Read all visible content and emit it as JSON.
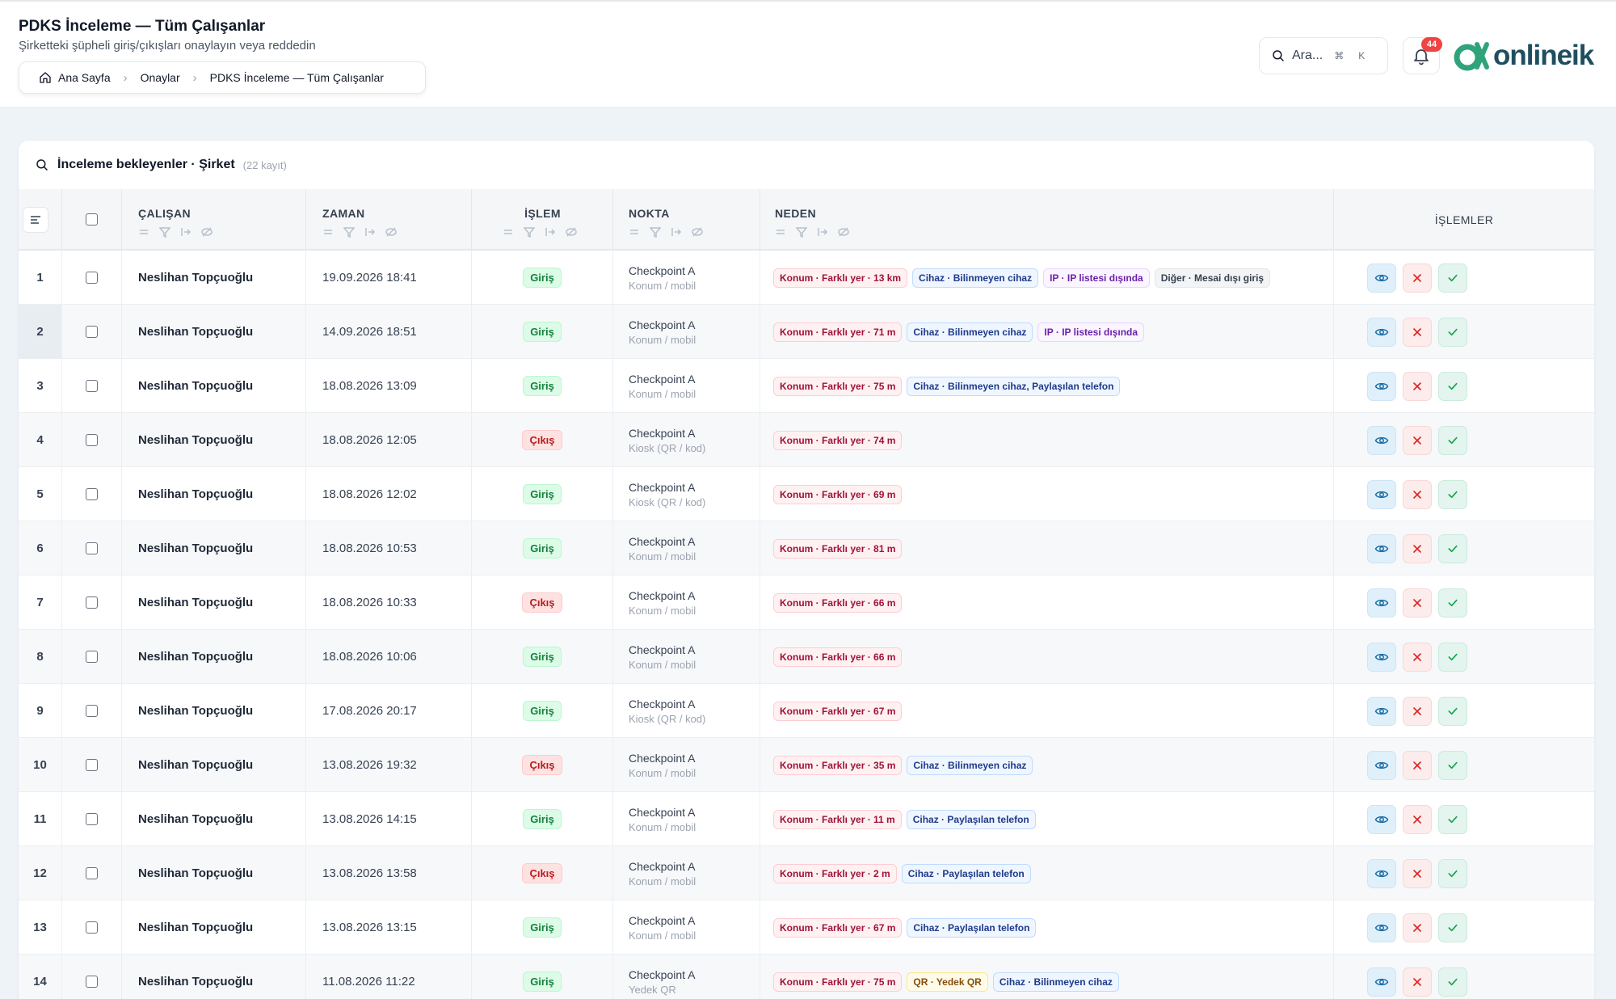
{
  "header": {
    "title": "PDKS İnceleme — Tüm Çalışanlar",
    "subtitle": "Şirketteki şüpheli giriş/çıkışları onaylayın veya reddedin",
    "breadcrumb": [
      "Ana Sayfa",
      "Onaylar",
      "PDKS İnceleme — Tüm Çalışanlar"
    ],
    "search_placeholder": "Ara...",
    "shortcut_mod": "⌘",
    "shortcut_key": "K",
    "notification_count": "44",
    "logo_text": "onlineik"
  },
  "card": {
    "title": "İnceleme bekleyenler · Şirket",
    "count": "(22 kayıt)"
  },
  "columns": {
    "employee": "ÇALIŞAN",
    "time": "ZAMAN",
    "action": "İŞLEM",
    "point": "NOKTA",
    "reason": "NEDEN",
    "operations": "İŞLEMLER"
  },
  "colors": {
    "giris": "#15803d",
    "cikis": "#b91c1c",
    "konum": "#9f1239",
    "cihaz": "#1e3a8a",
    "ip": "#6b21a8",
    "qr": "#854d0e",
    "logo": "#1f4e5f",
    "logo_mark": "#2fa37a"
  },
  "rows": [
    {
      "idx": "1",
      "employee": "Neslihan Topçuoğlu",
      "time": "19.09.2026 18:41",
      "action": "Giriş",
      "dir": "in",
      "point": "Checkpoint A",
      "method": "Konum / mobil",
      "reasons": [
        {
          "type": "konum",
          "text": "Konum · Farklı yer · 13 km"
        },
        {
          "type": "cihaz",
          "text": "Cihaz · Bilinmeyen cihaz"
        },
        {
          "type": "ip",
          "text": "IP · IP listesi dışında"
        },
        {
          "type": "diger",
          "text": "Diğer · Mesai dışı giriş"
        }
      ]
    },
    {
      "idx": "2",
      "employee": "Neslihan Topçuoğlu",
      "time": "14.09.2026 18:51",
      "action": "Giriş",
      "dir": "in",
      "point": "Checkpoint A",
      "method": "Konum / mobil",
      "reasons": [
        {
          "type": "konum",
          "text": "Konum · Farklı yer · 71 m"
        },
        {
          "type": "cihaz",
          "text": "Cihaz · Bilinmeyen cihaz"
        },
        {
          "type": "ip",
          "text": "IP · IP listesi dışında"
        }
      ]
    },
    {
      "idx": "3",
      "employee": "Neslihan Topçuoğlu",
      "time": "18.08.2026 13:09",
      "action": "Giriş",
      "dir": "in",
      "point": "Checkpoint A",
      "method": "Konum / mobil",
      "reasons": [
        {
          "type": "konum",
          "text": "Konum · Farklı yer · 75 m"
        },
        {
          "type": "cihaz",
          "text": "Cihaz · Bilinmeyen cihaz, Paylaşılan telefon"
        }
      ]
    },
    {
      "idx": "4",
      "employee": "Neslihan Topçuoğlu",
      "time": "18.08.2026 12:05",
      "action": "Çıkış",
      "dir": "out",
      "point": "Checkpoint A",
      "method": "Kiosk (QR / kod)",
      "reasons": [
        {
          "type": "konum",
          "text": "Konum · Farklı yer · 74 m"
        }
      ]
    },
    {
      "idx": "5",
      "employee": "Neslihan Topçuoğlu",
      "time": "18.08.2026 12:02",
      "action": "Giriş",
      "dir": "in",
      "point": "Checkpoint A",
      "method": "Kiosk (QR / kod)",
      "reasons": [
        {
          "type": "konum",
          "text": "Konum · Farklı yer · 69 m"
        }
      ]
    },
    {
      "idx": "6",
      "employee": "Neslihan Topçuoğlu",
      "time": "18.08.2026 10:53",
      "action": "Giriş",
      "dir": "in",
      "point": "Checkpoint A",
      "method": "Konum / mobil",
      "reasons": [
        {
          "type": "konum",
          "text": "Konum · Farklı yer · 81 m"
        }
      ]
    },
    {
      "idx": "7",
      "employee": "Neslihan Topçuoğlu",
      "time": "18.08.2026 10:33",
      "action": "Çıkış",
      "dir": "out",
      "point": "Checkpoint A",
      "method": "Konum / mobil",
      "reasons": [
        {
          "type": "konum",
          "text": "Konum · Farklı yer · 66 m"
        }
      ]
    },
    {
      "idx": "8",
      "employee": "Neslihan Topçuoğlu",
      "time": "18.08.2026 10:06",
      "action": "Giriş",
      "dir": "in",
      "point": "Checkpoint A",
      "method": "Konum / mobil",
      "reasons": [
        {
          "type": "konum",
          "text": "Konum · Farklı yer · 66 m"
        }
      ]
    },
    {
      "idx": "9",
      "employee": "Neslihan Topçuoğlu",
      "time": "17.08.2026 20:17",
      "action": "Giriş",
      "dir": "in",
      "point": "Checkpoint A",
      "method": "Kiosk (QR / kod)",
      "reasons": [
        {
          "type": "konum",
          "text": "Konum · Farklı yer · 67 m"
        }
      ]
    },
    {
      "idx": "10",
      "employee": "Neslihan Topçuoğlu",
      "time": "13.08.2026 19:32",
      "action": "Çıkış",
      "dir": "out",
      "point": "Checkpoint A",
      "method": "Konum / mobil",
      "reasons": [
        {
          "type": "konum",
          "text": "Konum · Farklı yer · 35 m"
        },
        {
          "type": "cihaz",
          "text": "Cihaz · Bilinmeyen cihaz"
        }
      ]
    },
    {
      "idx": "11",
      "employee": "Neslihan Topçuoğlu",
      "time": "13.08.2026 14:15",
      "action": "Giriş",
      "dir": "in",
      "point": "Checkpoint A",
      "method": "Konum / mobil",
      "reasons": [
        {
          "type": "konum",
          "text": "Konum · Farklı yer · 11 m"
        },
        {
          "type": "cihaz",
          "text": "Cihaz · Paylaşılan telefon"
        }
      ]
    },
    {
      "idx": "12",
      "employee": "Neslihan Topçuoğlu",
      "time": "13.08.2026 13:58",
      "action": "Çıkış",
      "dir": "out",
      "point": "Checkpoint A",
      "method": "Konum / mobil",
      "reasons": [
        {
          "type": "konum",
          "text": "Konum · Farklı yer · 2 m"
        },
        {
          "type": "cihaz",
          "text": "Cihaz · Paylaşılan telefon"
        }
      ]
    },
    {
      "idx": "13",
      "employee": "Neslihan Topçuoğlu",
      "time": "13.08.2026 13:15",
      "action": "Giriş",
      "dir": "in",
      "point": "Checkpoint A",
      "method": "Konum / mobil",
      "reasons": [
        {
          "type": "konum",
          "text": "Konum · Farklı yer · 67 m"
        },
        {
          "type": "cihaz",
          "text": "Cihaz · Paylaşılan telefon"
        }
      ]
    },
    {
      "idx": "14",
      "employee": "Neslihan Topçuoğlu",
      "time": "11.08.2026 11:22",
      "action": "Giriş",
      "dir": "in",
      "point": "Checkpoint A",
      "method": "Yedek QR",
      "reasons": [
        {
          "type": "konum",
          "text": "Konum · Farklı yer · 75 m"
        },
        {
          "type": "qr",
          "text": "QR · Yedek QR"
        },
        {
          "type": "cihaz",
          "text": "Cihaz · Bilinmeyen cihaz"
        }
      ]
    }
  ]
}
